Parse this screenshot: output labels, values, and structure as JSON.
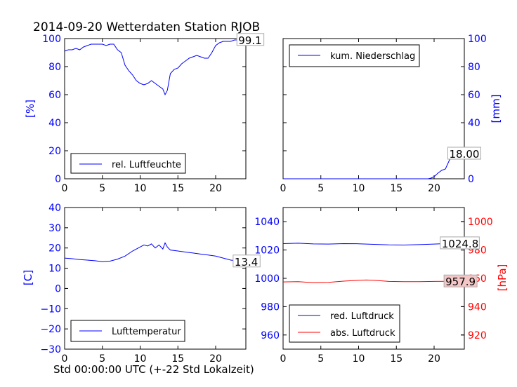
{
  "title": "2014-09-20 Wetterdaten Station RJOB",
  "xlabel": "Std 00:00:00 UTC (+-22 Std Lokalzeit)",
  "colors": {
    "blue": "#0000ff",
    "red": "#ff0000",
    "black": "#000000",
    "annot_red_bg": "#f4c6c6"
  },
  "chart_data": [
    {
      "type": "line",
      "id": "humidity",
      "ylabel": "[%]",
      "xlim": [
        0,
        24
      ],
      "ylim": [
        0,
        100
      ],
      "xticks": [
        0,
        5,
        10,
        15,
        20
      ],
      "yticks": [
        0,
        20,
        40,
        60,
        80,
        100
      ],
      "legend": "bottom-left",
      "series": [
        {
          "name": "rel. Luftfeuchte",
          "color": "#0000ff",
          "x": [
            0,
            0.5,
            1,
            1.5,
            2,
            2.5,
            3,
            3.5,
            4,
            4.5,
            5,
            5.5,
            6,
            6.5,
            7,
            7.5,
            8,
            8.5,
            9,
            9.5,
            10,
            10.5,
            11,
            11.5,
            12,
            12.5,
            13,
            13.3,
            13.6,
            14,
            14.5,
            15,
            15.5,
            16,
            16.5,
            17,
            17.5,
            18,
            18.5,
            19,
            19.5,
            20,
            20.5,
            21,
            21.5,
            22,
            22.5,
            23,
            23.5,
            24
          ],
          "y": [
            91,
            92,
            92,
            93,
            92,
            94,
            95,
            96,
            96,
            96,
            96,
            95,
            96,
            96,
            92,
            90,
            81,
            77,
            74,
            70,
            68,
            67,
            68,
            70,
            68,
            66,
            64,
            60,
            63,
            75,
            78,
            79,
            82,
            84,
            86,
            87,
            88,
            87,
            86,
            86,
            90,
            95,
            97,
            98,
            98,
            98,
            99,
            99,
            99,
            99.1
          ]
        }
      ],
      "annotation": "99.1",
      "annotation_at": [
        23,
        99.1
      ]
    },
    {
      "type": "line",
      "id": "precipitation",
      "ylabel": "[mm]",
      "xlim": [
        0,
        24
      ],
      "ylim": [
        0,
        100
      ],
      "xticks": [
        0,
        5,
        10,
        15,
        20
      ],
      "yticks": [
        0,
        20,
        40,
        60,
        80,
        100
      ],
      "legend": "top-left",
      "series": [
        {
          "name": "kum. Niederschlag",
          "color": "#0000ff",
          "x": [
            0,
            19.2,
            19.6,
            20,
            20.5,
            21,
            21.5,
            22,
            22.5,
            23,
            24
          ],
          "y": [
            0,
            0,
            0.5,
            1.5,
            4,
            6,
            7,
            13,
            17,
            18,
            18
          ]
        }
      ],
      "annotation": "18.00",
      "annotation_at": [
        22,
        18
      ]
    },
    {
      "type": "line",
      "id": "temperature",
      "ylabel": "[C]",
      "xlim": [
        0,
        24
      ],
      "ylim": [
        -30,
        40
      ],
      "xticks": [
        0,
        5,
        10,
        15,
        20
      ],
      "yticks": [
        -30,
        -20,
        -10,
        0,
        10,
        20,
        30,
        40
      ],
      "legend": "bottom-left",
      "series": [
        {
          "name": "Lufttemperatur",
          "color": "#0000ff",
          "x": [
            0,
            1,
            2,
            3,
            4,
            5,
            6,
            7,
            8,
            9,
            10,
            10.5,
            11,
            11.5,
            12,
            12.5,
            13,
            13.3,
            13.6,
            14,
            15,
            16,
            17,
            18,
            19,
            20,
            21,
            22,
            23,
            24
          ],
          "y": [
            15,
            14.7,
            14.3,
            14,
            13.7,
            13.2,
            13.5,
            14.5,
            16,
            18.5,
            20.5,
            21.5,
            21,
            22,
            20,
            21.5,
            19.5,
            22.5,
            20.5,
            19,
            18.5,
            18,
            17.5,
            17,
            16.5,
            16,
            15,
            14,
            13.6,
            13.4
          ]
        }
      ],
      "annotation": "13.4",
      "annotation_at": [
        22.5,
        13.4
      ]
    },
    {
      "type": "line",
      "id": "pressure",
      "ylabel": "[hPa]",
      "xlim": [
        0,
        24
      ],
      "ylim": [
        950,
        1050
      ],
      "ylim_right": [
        910,
        1010
      ],
      "xticks": [
        0,
        5,
        10,
        15,
        20
      ],
      "yticks": [
        960,
        980,
        1000,
        1020,
        1040
      ],
      "yticks_right": [
        920,
        940,
        960,
        980,
        1000
      ],
      "legend": "bottom-left",
      "series": [
        {
          "name": "red. Luftdruck",
          "color": "#0000ff",
          "axis": "left",
          "x": [
            0,
            2,
            4,
            6,
            8,
            10,
            12,
            14,
            16,
            18,
            20,
            22,
            24
          ],
          "y": [
            1024.5,
            1024.8,
            1024.3,
            1024.2,
            1024.5,
            1024.4,
            1024,
            1023.6,
            1023.5,
            1023.8,
            1024.2,
            1024.6,
            1024.8
          ]
        }
      ],
      "series_right": [
        {
          "name": "abs. Luftdruck",
          "color": "#ff0000",
          "axis": "right",
          "x": [
            0,
            2,
            4,
            6,
            8,
            10,
            11,
            12,
            14,
            16,
            18,
            20,
            22,
            24
          ],
          "y": [
            957.5,
            957.6,
            957,
            957.2,
            958,
            958.6,
            958.8,
            958.6,
            957.8,
            957.6,
            957.6,
            957.8,
            957.9,
            957.9
          ]
        }
      ],
      "annotation_left": "1024.8",
      "annotation_left_at": [
        21,
        1024.8
      ],
      "annotation_right": "957.9",
      "annotation_right_at": [
        21.5,
        957.9
      ]
    }
  ]
}
